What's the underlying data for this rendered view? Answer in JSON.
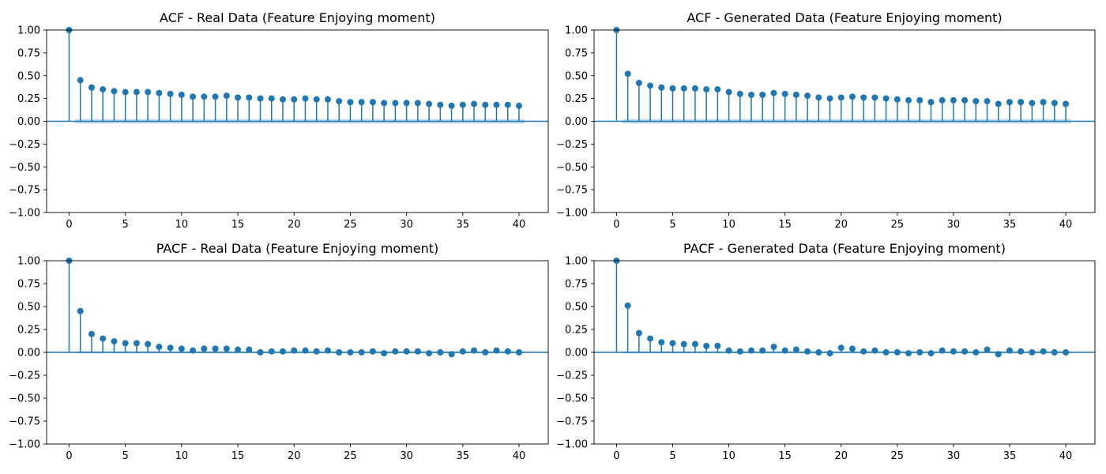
{
  "colors": {
    "stem": "#1f77b4",
    "band": "#1f77b4",
    "axes": "#000000",
    "background": "#ffffff"
  },
  "chart_data": [
    {
      "type": "stem",
      "title": "ACF - Real Data (Feature Enjoying moment)",
      "xlim": [
        -2,
        42.6
      ],
      "ylim": [
        -1.0,
        1.0
      ],
      "xticks": [
        0,
        5,
        10,
        15,
        20,
        25,
        30,
        35,
        40
      ],
      "yticks": [
        "1.00",
        "0.75",
        "0.50",
        "0.25",
        "0.00",
        "−0.25",
        "−0.50",
        "−0.75",
        "−1.00"
      ],
      "confidence_band": 0.025,
      "lags": [
        0,
        1,
        2,
        3,
        4,
        5,
        6,
        7,
        8,
        9,
        10,
        11,
        12,
        13,
        14,
        15,
        16,
        17,
        18,
        19,
        20,
        21,
        22,
        23,
        24,
        25,
        26,
        27,
        28,
        29,
        30,
        31,
        32,
        33,
        34,
        35,
        36,
        37,
        38,
        39,
        40
      ],
      "values": [
        1.0,
        0.45,
        0.37,
        0.35,
        0.33,
        0.32,
        0.32,
        0.32,
        0.31,
        0.3,
        0.29,
        0.27,
        0.27,
        0.27,
        0.28,
        0.26,
        0.26,
        0.25,
        0.25,
        0.24,
        0.24,
        0.25,
        0.24,
        0.24,
        0.22,
        0.21,
        0.21,
        0.21,
        0.2,
        0.2,
        0.2,
        0.2,
        0.19,
        0.18,
        0.17,
        0.18,
        0.19,
        0.18,
        0.18,
        0.18,
        0.17
      ]
    },
    {
      "type": "stem",
      "title": "ACF - Generated Data (Feature Enjoying moment)",
      "xlim": [
        -2,
        42.6
      ],
      "ylim": [
        -1.0,
        1.0
      ],
      "xticks": [
        0,
        5,
        10,
        15,
        20,
        25,
        30,
        35,
        40
      ],
      "yticks": [
        "1.00",
        "0.75",
        "0.50",
        "0.25",
        "0.00",
        "−0.25",
        "−0.50",
        "−0.75",
        "−1.00"
      ],
      "confidence_band": 0.025,
      "lags": [
        0,
        1,
        2,
        3,
        4,
        5,
        6,
        7,
        8,
        9,
        10,
        11,
        12,
        13,
        14,
        15,
        16,
        17,
        18,
        19,
        20,
        21,
        22,
        23,
        24,
        25,
        26,
        27,
        28,
        29,
        30,
        31,
        32,
        33,
        34,
        35,
        36,
        37,
        38,
        39,
        40
      ],
      "values": [
        1.0,
        0.52,
        0.42,
        0.39,
        0.37,
        0.36,
        0.36,
        0.36,
        0.35,
        0.35,
        0.32,
        0.3,
        0.29,
        0.29,
        0.31,
        0.3,
        0.29,
        0.28,
        0.26,
        0.25,
        0.26,
        0.27,
        0.26,
        0.26,
        0.25,
        0.24,
        0.23,
        0.23,
        0.21,
        0.23,
        0.23,
        0.23,
        0.22,
        0.22,
        0.19,
        0.21,
        0.21,
        0.2,
        0.21,
        0.2,
        0.19
      ]
    },
    {
      "type": "stem",
      "title": "PACF - Real Data (Feature Enjoying moment)",
      "xlim": [
        -2,
        42.6
      ],
      "ylim": [
        -1.0,
        1.0
      ],
      "xticks": [
        0,
        5,
        10,
        15,
        20,
        25,
        30,
        35,
        40
      ],
      "yticks": [
        "1.00",
        "0.75",
        "0.50",
        "0.25",
        "0.00",
        "−0.25",
        "−0.50",
        "−0.75",
        "−1.00"
      ],
      "confidence_band": 0.012,
      "lags": [
        0,
        1,
        2,
        3,
        4,
        5,
        6,
        7,
        8,
        9,
        10,
        11,
        12,
        13,
        14,
        15,
        16,
        17,
        18,
        19,
        20,
        21,
        22,
        23,
        24,
        25,
        26,
        27,
        28,
        29,
        30,
        31,
        32,
        33,
        34,
        35,
        36,
        37,
        38,
        39,
        40
      ],
      "values": [
        1.0,
        0.45,
        0.2,
        0.15,
        0.12,
        0.1,
        0.1,
        0.09,
        0.06,
        0.05,
        0.04,
        0.02,
        0.04,
        0.04,
        0.04,
        0.03,
        0.03,
        0.0,
        0.01,
        0.01,
        0.02,
        0.02,
        0.01,
        0.02,
        0.0,
        0.0,
        0.0,
        0.01,
        -0.01,
        0.01,
        0.01,
        0.01,
        -0.01,
        0.0,
        -0.02,
        0.01,
        0.02,
        0.0,
        0.02,
        0.01,
        0.0
      ]
    },
    {
      "type": "stem",
      "title": "PACF - Generated Data (Feature Enjoying moment)",
      "xlim": [
        -2,
        42.6
      ],
      "ylim": [
        -1.0,
        1.0
      ],
      "xticks": [
        0,
        5,
        10,
        15,
        20,
        25,
        30,
        35,
        40
      ],
      "yticks": [
        "1.00",
        "0.75",
        "0.50",
        "0.25",
        "0.00",
        "−0.25",
        "−0.50",
        "−0.75",
        "−1.00"
      ],
      "confidence_band": 0.012,
      "lags": [
        0,
        1,
        2,
        3,
        4,
        5,
        6,
        7,
        8,
        9,
        10,
        11,
        12,
        13,
        14,
        15,
        16,
        17,
        18,
        19,
        20,
        21,
        22,
        23,
        24,
        25,
        26,
        27,
        28,
        29,
        30,
        31,
        32,
        33,
        34,
        35,
        36,
        37,
        38,
        39,
        40
      ],
      "values": [
        1.0,
        0.51,
        0.21,
        0.15,
        0.11,
        0.1,
        0.09,
        0.09,
        0.07,
        0.07,
        0.02,
        0.01,
        0.02,
        0.02,
        0.06,
        0.02,
        0.03,
        0.01,
        0.0,
        -0.01,
        0.05,
        0.04,
        0.01,
        0.02,
        0.0,
        0.0,
        -0.01,
        0.0,
        -0.01,
        0.02,
        0.01,
        0.01,
        0.0,
        0.03,
        -0.02,
        0.02,
        0.01,
        0.0,
        0.01,
        0.0,
        0.0
      ]
    }
  ]
}
